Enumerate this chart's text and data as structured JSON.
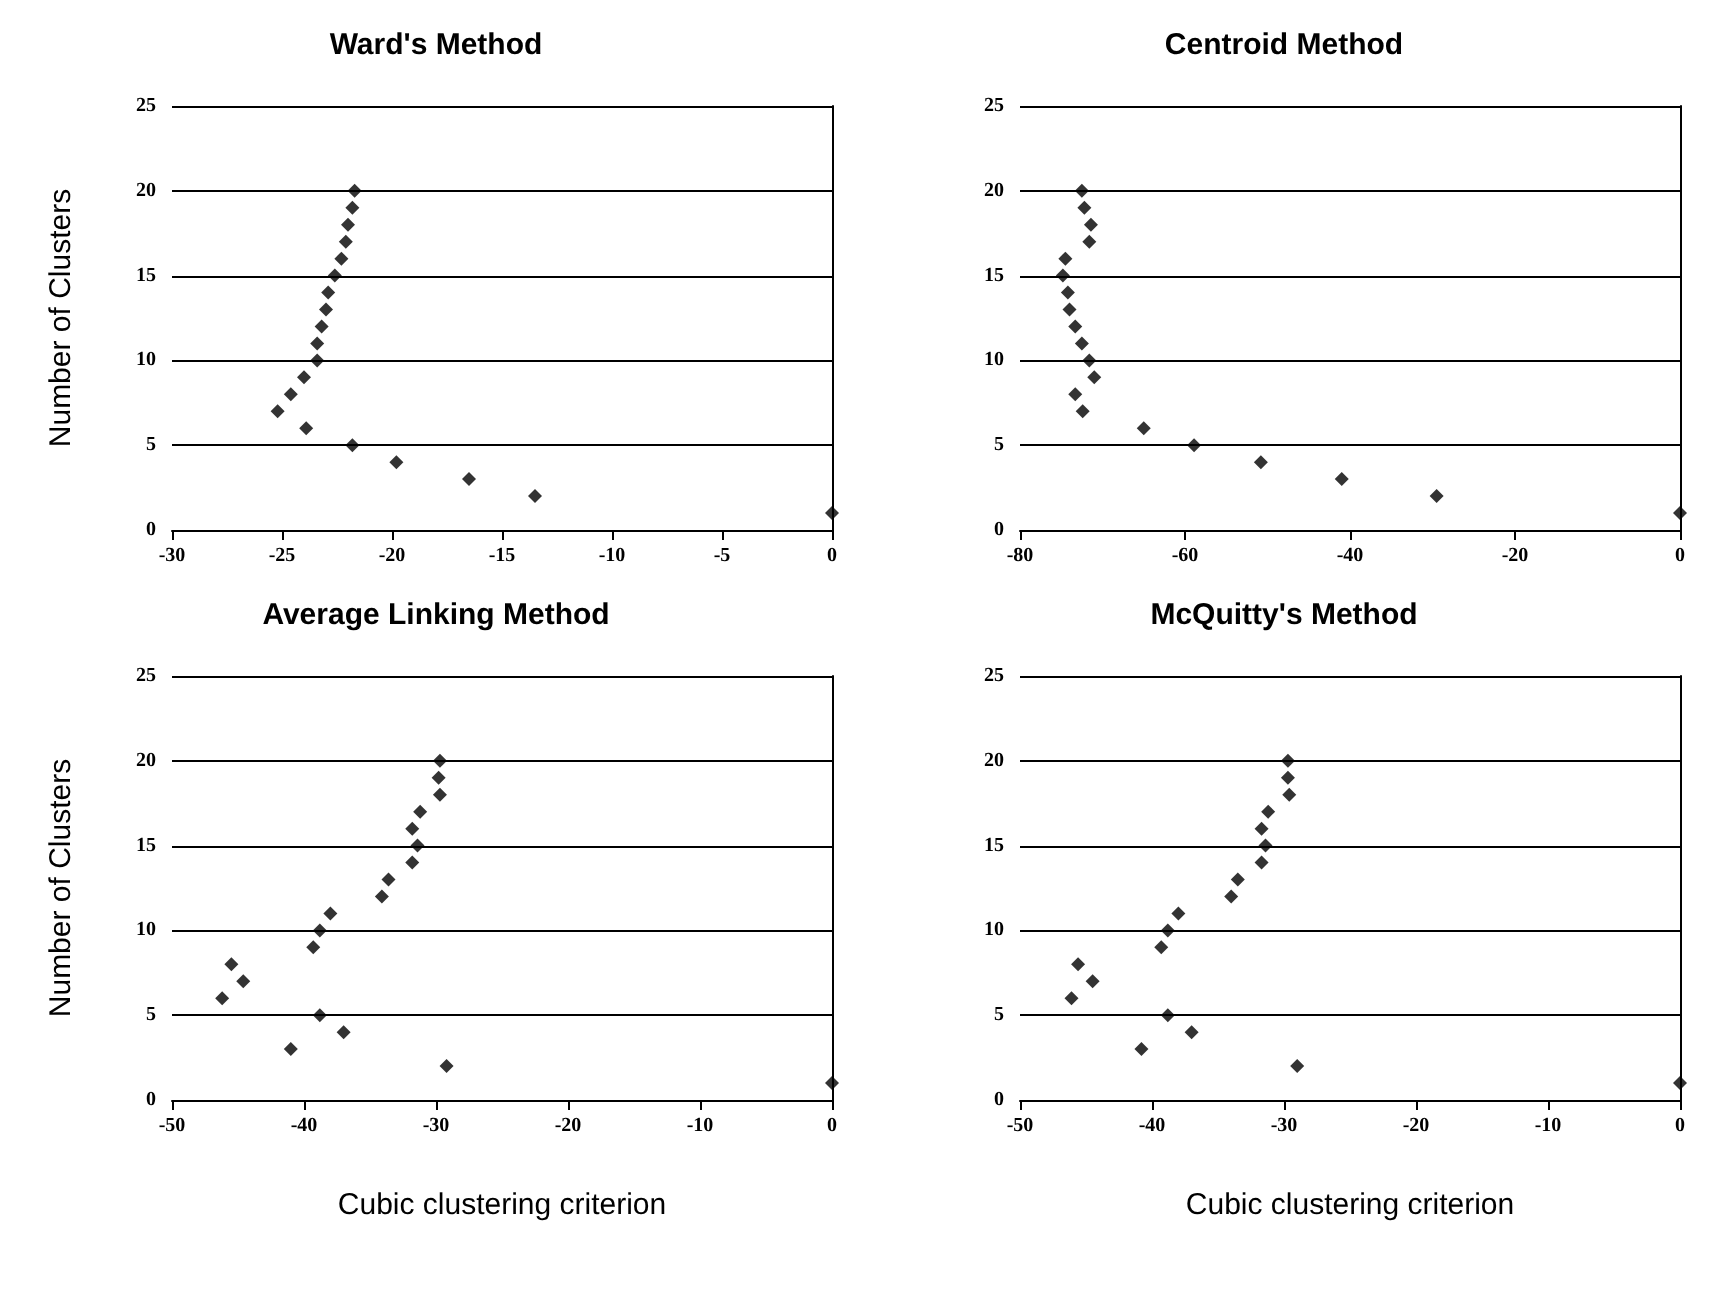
{
  "chart_data": [
    {
      "type": "scatter",
      "title": "Ward's Method",
      "ylabel": "Number of Clusters",
      "marker": "diamond",
      "grid": "y",
      "color": "#000000",
      "xlim": [
        -30,
        0
      ],
      "xticks": [
        -30,
        -25,
        -20,
        -15,
        -10,
        -5,
        0
      ],
      "ylim": [
        0,
        25
      ],
      "yticks": [
        0,
        5,
        10,
        15,
        20,
        25
      ],
      "x": [
        0,
        -13.5,
        -16.5,
        -19.8,
        -21.8,
        -23.9,
        -25.2,
        -24.6,
        -24.0,
        -23.4,
        -23.4,
        -23.2,
        -23.0,
        -22.9,
        -22.6,
        -22.3,
        -22.1,
        -22.0,
        -21.8,
        -21.7
      ],
      "values": [
        1,
        2,
        3,
        4,
        5,
        6,
        7,
        8,
        9,
        10,
        11,
        12,
        13,
        14,
        15,
        16,
        17,
        18,
        19,
        20
      ]
    },
    {
      "type": "scatter",
      "title": "Centroid Method",
      "marker": "diamond",
      "grid": "y",
      "color": "#000000",
      "xlim": [
        -80,
        0
      ],
      "xticks": [
        -80,
        -60,
        -40,
        -20,
        0
      ],
      "ylim": [
        0,
        25
      ],
      "yticks": [
        0,
        5,
        10,
        15,
        20,
        25
      ],
      "x": [
        0,
        -29.5,
        -41.0,
        -50.8,
        -58.9,
        -65.0,
        -72.4,
        -73.3,
        -71.0,
        -71.6,
        -72.5,
        -73.3,
        -74.0,
        -74.2,
        -74.8,
        -74.5,
        -71.6,
        -71.4,
        -72.2,
        -72.5
      ],
      "values": [
        1,
        2,
        3,
        4,
        5,
        6,
        7,
        8,
        9,
        10,
        11,
        12,
        13,
        14,
        15,
        16,
        17,
        18,
        19,
        20
      ]
    },
    {
      "type": "scatter",
      "title": "Average Linking Method",
      "ylabel": "Number of Clusters",
      "xlabel": "Cubic clustering criterion",
      "marker": "diamond",
      "grid": "y",
      "color": "#000000",
      "xlim": [
        -50,
        0
      ],
      "xticks": [
        -50,
        -40,
        -30,
        -20,
        -10,
        0
      ],
      "ylim": [
        0,
        25
      ],
      "yticks": [
        0,
        5,
        10,
        15,
        20,
        25
      ],
      "x": [
        0,
        -29.2,
        -41.0,
        -37.0,
        -38.8,
        -46.2,
        -44.6,
        -45.5,
        -39.3,
        -38.8,
        -38.0,
        -34.1,
        -33.6,
        -31.8,
        -31.4,
        -31.8,
        -31.2,
        -29.7,
        -29.8,
        -29.7
      ],
      "values": [
        1,
        2,
        3,
        4,
        5,
        6,
        7,
        8,
        9,
        10,
        11,
        12,
        13,
        14,
        15,
        16,
        17,
        18,
        19,
        20
      ]
    },
    {
      "type": "scatter",
      "title": "McQuitty's Method",
      "xlabel": "Cubic clustering criterion",
      "marker": "diamond",
      "grid": "y",
      "color": "#000000",
      "xlim": [
        -50,
        0
      ],
      "xticks": [
        -50,
        -40,
        -30,
        -20,
        -10,
        0
      ],
      "ylim": [
        0,
        25
      ],
      "yticks": [
        0,
        5,
        10,
        15,
        20,
        25
      ],
      "x": [
        0,
        -29.0,
        -40.8,
        -37.0,
        -38.8,
        -46.1,
        -44.5,
        -45.6,
        -39.3,
        -38.8,
        -38.0,
        -34.0,
        -33.5,
        -31.7,
        -31.4,
        -31.7,
        -31.2,
        -29.6,
        -29.7,
        -29.7
      ],
      "values": [
        1,
        2,
        3,
        4,
        5,
        6,
        7,
        8,
        9,
        10,
        11,
        12,
        13,
        14,
        15,
        16,
        17,
        18,
        19,
        20
      ]
    }
  ]
}
